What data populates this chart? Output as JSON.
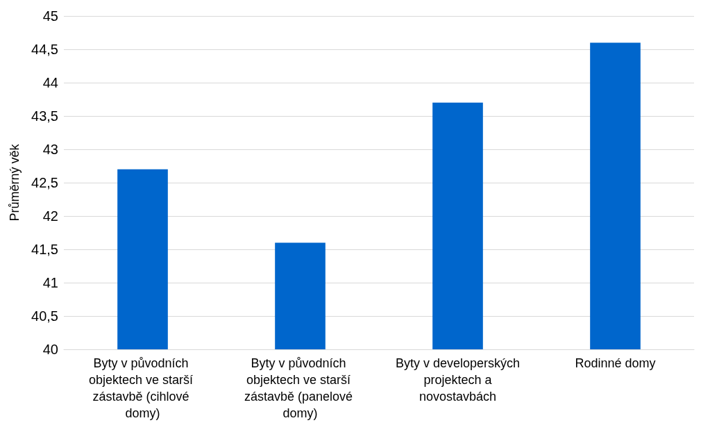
{
  "chart_data": {
    "type": "bar",
    "ylabel": "Průměrný věk",
    "categories": [
      "Byty v původních objektech ve starší zástavbě (cihlové domy)",
      "Byty v původních objektech ve starší zástavbě (panelové domy)",
      "Byty v developerských projektech a novostavbách",
      "Rodinné domy"
    ],
    "values": [
      42.7,
      41.6,
      43.7,
      44.6
    ],
    "color": "#0066cc",
    "ylim": [
      40,
      45
    ],
    "yticks": [
      40,
      {
        "value": 40.5,
        "label": "40,5"
      },
      41,
      {
        "value": 41.5,
        "label": "41,5"
      },
      42,
      {
        "value": 42.5,
        "label": "42,5"
      },
      43,
      {
        "value": 43.5,
        "label": "43,5"
      },
      44,
      {
        "value": 44.5,
        "label": "44,5"
      },
      45
    ],
    "grid": "y"
  }
}
